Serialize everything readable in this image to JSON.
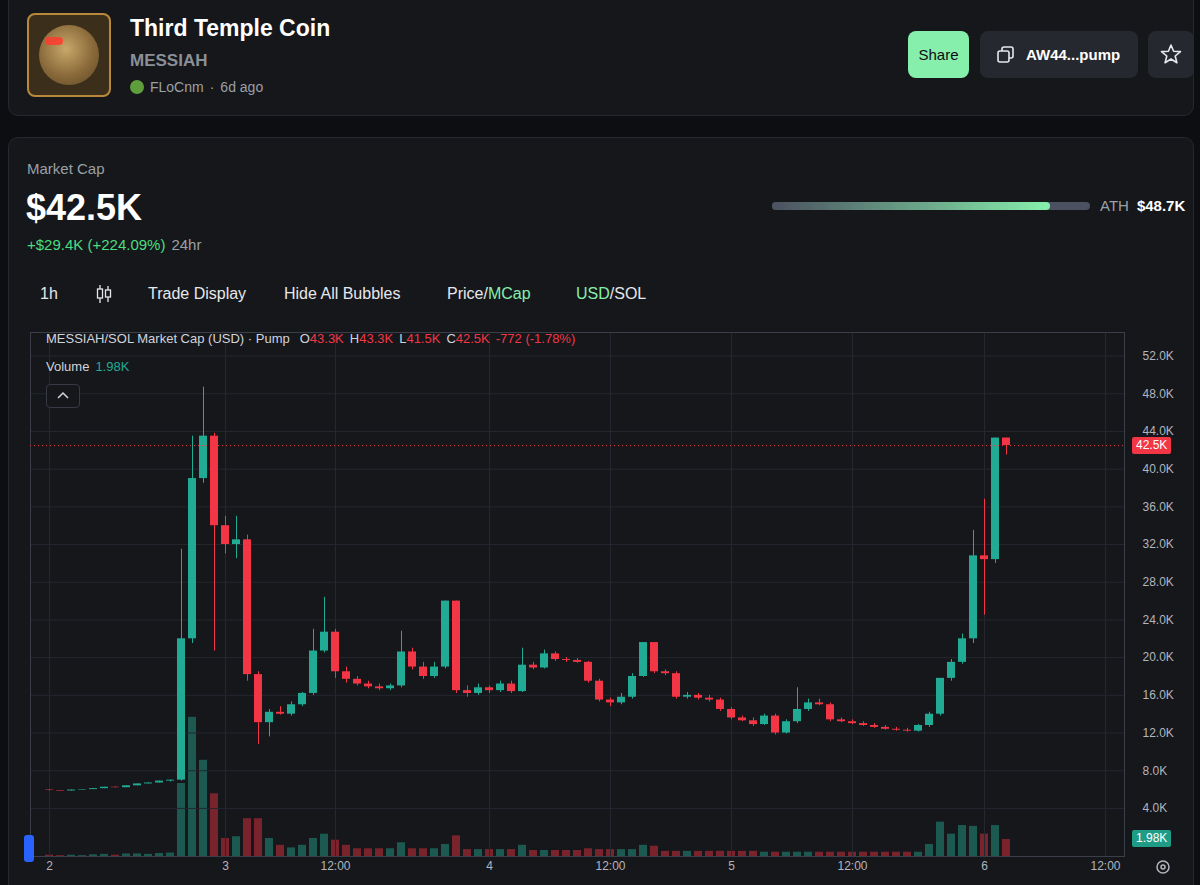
{
  "header": {
    "title": "Third Temple Coin",
    "symbol": "MESSIAH",
    "creator": "FLoCnm",
    "separator": "·",
    "age": "6d ago",
    "share": "Share",
    "address": "AW44...pump"
  },
  "stats": {
    "label": "Market Cap",
    "value": "$42.5K",
    "change": "+$29.4K (+224.09%)",
    "period": "24hr",
    "ath_label": "ATH",
    "ath_value": "$48.7K",
    "progress": {
      "value": 42500,
      "max": 48700
    }
  },
  "toolbar": {
    "interval": "1h",
    "buttons": [
      "Trade Display",
      "Hide All Bubbles"
    ],
    "separator": "/",
    "toggles": [
      {
        "options": [
          "Price",
          "MCap"
        ],
        "active": 1
      },
      {
        "options": [
          "USD",
          "SOL"
        ],
        "active": 0
      }
    ]
  },
  "chart_data": {
    "type": "candlestick",
    "title": "MESSIAH/SOL Market Cap (USD) · Pump",
    "ohlc_labels": [
      {
        "label": "O",
        "text": "43.3K"
      },
      {
        "label": "H",
        "text": "43.3K"
      },
      {
        "label": "L",
        "text": "41.5K"
      },
      {
        "label": "C",
        "text": "42.5K"
      }
    ],
    "change": "-772 (-1.78%)",
    "volume_title": "Volume",
    "volume_text": "1.98K",
    "categories": [
      "2",
      null,
      null,
      null,
      null,
      null,
      null,
      null,
      null,
      null,
      null,
      null,
      null,
      null,
      null,
      null,
      "3",
      null,
      null,
      null,
      null,
      null,
      null,
      null,
      null,
      null,
      "12:00",
      null,
      null,
      null,
      null,
      null,
      null,
      null,
      null,
      null,
      null,
      null,
      null,
      null,
      "4",
      null,
      null,
      null,
      null,
      null,
      null,
      null,
      null,
      null,
      null,
      "12:00",
      null,
      null,
      null,
      null,
      null,
      null,
      null,
      null,
      null,
      null,
      "5",
      null,
      null,
      null,
      null,
      null,
      null,
      null,
      null,
      null,
      null,
      "12:00",
      null,
      null,
      null,
      null,
      null,
      null,
      null,
      null,
      null,
      null,
      null,
      "6",
      null,
      null,
      null,
      null,
      null,
      null,
      null,
      null,
      null,
      null,
      "12:00"
    ],
    "open": [
      5950,
      5900,
      5850,
      5950,
      6000,
      6100,
      6250,
      6200,
      6400,
      6600,
      6700,
      6900,
      7000,
      22000,
      39000,
      43500,
      34000,
      32000,
      32500,
      18200,
      13100,
      14200,
      14000,
      15000,
      16200,
      20700,
      22700,
      18500,
      17700,
      17200,
      16900,
      16700,
      17000,
      20600,
      19000,
      18000,
      19000,
      26000,
      16500,
      16200,
      16800,
      16500,
      17200,
      16400,
      19200,
      18900,
      20400,
      19800,
      19700,
      19500,
      17500,
      15500,
      15200,
      15800,
      18000,
      21600,
      18500,
      18300,
      15800,
      16000,
      15700,
      15500,
      14500,
      13600,
      13300,
      12900,
      13800,
      12000,
      13200,
      14500,
      15200,
      15000,
      13400,
      13200,
      13000,
      12800,
      12600,
      12400,
      12300,
      12200,
      12800,
      14000,
      17800,
      19500,
      22000,
      30800,
      30400,
      43300,
      null,
      null,
      null,
      null,
      null,
      null,
      null,
      null,
      null
    ],
    "high": [
      5950,
      5900,
      5950,
      6000,
      6100,
      6250,
      6300,
      6400,
      6600,
      6700,
      6900,
      7000,
      31500,
      43500,
      48700,
      43800,
      35000,
      35000,
      33000,
      18500,
      14500,
      14800,
      15300,
      16300,
      23000,
      26400,
      23000,
      19000,
      18000,
      17500,
      17200,
      17200,
      22800,
      21000,
      19500,
      19500,
      26000,
      26000,
      17000,
      17200,
      17000,
      17500,
      17500,
      21000,
      19500,
      20800,
      20600,
      20000,
      19900,
      19600,
      17700,
      15700,
      16200,
      18300,
      21600,
      21600,
      18700,
      18500,
      16300,
      16200,
      16000,
      15700,
      14700,
      13800,
      13600,
      14000,
      14000,
      13400,
      16800,
      15600,
      15600,
      15200,
      13600,
      13400,
      13200,
      13000,
      12800,
      12600,
      12500,
      12900,
      14200,
      17800,
      19800,
      22500,
      33500,
      36800,
      43300,
      43300,
      null,
      null,
      null,
      null,
      null,
      null,
      null,
      null,
      null
    ],
    "low": [
      5850,
      5850,
      5850,
      5950,
      6000,
      6100,
      6200,
      6200,
      6400,
      6600,
      6700,
      6800,
      6900,
      21500,
      38500,
      20700,
      31000,
      30500,
      17500,
      10800,
      11600,
      13900,
      13800,
      14800,
      16000,
      20500,
      17800,
      17300,
      17000,
      16700,
      16500,
      16500,
      16800,
      18700,
      17700,
      17800,
      18800,
      16200,
      15800,
      16000,
      16200,
      16300,
      16200,
      16300,
      18700,
      18800,
      19600,
      19500,
      19400,
      17300,
      15300,
      14800,
      15000,
      15600,
      17900,
      18300,
      18100,
      15600,
      15600,
      15500,
      15300,
      14300,
      13400,
      13200,
      12700,
      12800,
      11800,
      11900,
      13000,
      14300,
      14900,
      13200,
      13100,
      12900,
      12700,
      12500,
      12300,
      12200,
      12100,
      12100,
      12600,
      13800,
      17500,
      19300,
      21500,
      24500,
      30000,
      41500,
      null,
      null,
      null,
      null,
      null,
      null,
      null,
      null,
      null
    ],
    "close": [
      5900,
      5850,
      5950,
      6000,
      6100,
      6250,
      6200,
      6400,
      6600,
      6700,
      6900,
      7000,
      22000,
      39000,
      43500,
      34000,
      32000,
      32500,
      18200,
      13100,
      14200,
      14000,
      15000,
      16200,
      20700,
      22700,
      18500,
      17700,
      17200,
      16900,
      16700,
      17000,
      20600,
      19000,
      18000,
      19000,
      26000,
      16500,
      16200,
      16800,
      16500,
      17200,
      16400,
      19200,
      18900,
      20400,
      19800,
      19700,
      19500,
      17500,
      15500,
      15200,
      15800,
      18000,
      21600,
      18500,
      18300,
      15800,
      16000,
      15700,
      15500,
      14500,
      13600,
      13300,
      12900,
      13800,
      12000,
      13200,
      14500,
      15200,
      15000,
      13400,
      13200,
      13000,
      12800,
      12600,
      12400,
      12300,
      12200,
      12800,
      14000,
      17800,
      19500,
      22000,
      30800,
      30400,
      43300,
      42500,
      null,
      null,
      null,
      null,
      null,
      null,
      null,
      null,
      null
    ],
    "volume": [
      150,
      100,
      150,
      100,
      200,
      250,
      150,
      300,
      300,
      250,
      350,
      400,
      8500,
      16200,
      11200,
      7300,
      2100,
      2300,
      4400,
      4400,
      2100,
      1300,
      1000,
      1300,
      2100,
      2600,
      1900,
      1300,
      900,
      900,
      900,
      900,
      1600,
      900,
      900,
      900,
      1400,
      2400,
      800,
      800,
      800,
      800,
      800,
      1300,
      700,
      700,
      700,
      700,
      700,
      900,
      800,
      800,
      800,
      800,
      1300,
      1200,
      600,
      600,
      600,
      600,
      600,
      600,
      600,
      600,
      600,
      500,
      500,
      500,
      500,
      500,
      500,
      500,
      500,
      500,
      500,
      500,
      500,
      500,
      500,
      500,
      1400,
      4000,
      2600,
      3600,
      3500,
      2600,
      3600,
      1980,
      null,
      null,
      null,
      null,
      null,
      null,
      null,
      null,
      null
    ],
    "color": {
      "up": "#22ab94",
      "down": "#f23645"
    },
    "ylim": [
      -1100,
      54500
    ],
    "yticks": [
      {
        "value": 4000,
        "label": "4.0K"
      },
      {
        "value": 8000,
        "label": "8.0K"
      },
      {
        "value": 12000,
        "label": "12.0K"
      },
      {
        "value": 16000,
        "label": "16.0K"
      },
      {
        "value": 20000,
        "label": "20.0K"
      },
      {
        "value": 24000,
        "label": "24.0K"
      },
      {
        "value": 28000,
        "label": "28.0K"
      },
      {
        "value": 32000,
        "label": "32.0K"
      },
      {
        "value": 36000,
        "label": "36.0K"
      },
      {
        "value": 40000,
        "label": "40.0K"
      },
      {
        "value": 44000,
        "label": "44.0K"
      },
      {
        "value": 48000,
        "label": "48.0K"
      },
      {
        "value": 52000,
        "label": "52.0K"
      }
    ],
    "y2lim": [
      0,
      61000
    ],
    "grid": true,
    "annotations": [
      {
        "text": "42.5K",
        "value": 42500
      },
      {
        "text": "1.98K",
        "value": 1980,
        "axis": "y2"
      }
    ]
  }
}
